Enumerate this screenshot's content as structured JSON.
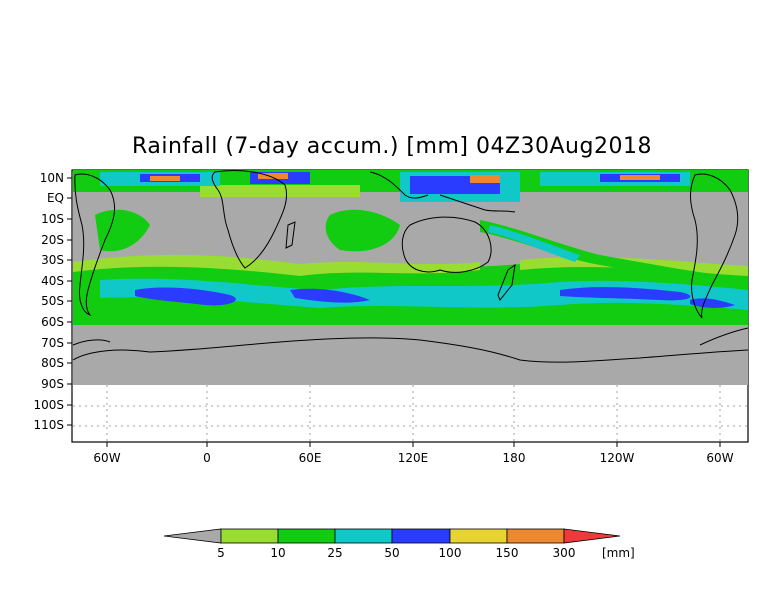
{
  "title": "Rainfall (7-day accum.) [mm] 04Z30Aug2018",
  "map": {
    "lat_labels": [
      "10N",
      "EQ",
      "10S",
      "20S",
      "30S",
      "40S",
      "50S",
      "60S",
      "70S",
      "80S",
      "90S",
      "100S",
      "110S"
    ],
    "lon_labels": [
      "60W",
      "0",
      "60E",
      "120E",
      "180",
      "120W",
      "60W"
    ],
    "colors": {
      "no_data": "#a9a9a9",
      "ocean_bg": "#a9a9a9",
      "coast": "#000000",
      "grid": "#a0a0a0"
    }
  },
  "colorbar": {
    "unit": "[mm]",
    "tick_labels": [
      "5",
      "10",
      "25",
      "50",
      "100",
      "150",
      "300"
    ],
    "colors": [
      "#a9a9a9",
      "#99dd33",
      "#11cc11",
      "#11c8c8",
      "#2a3cff",
      "#e8d430",
      "#ee8830",
      "#ee3a3a"
    ]
  }
}
